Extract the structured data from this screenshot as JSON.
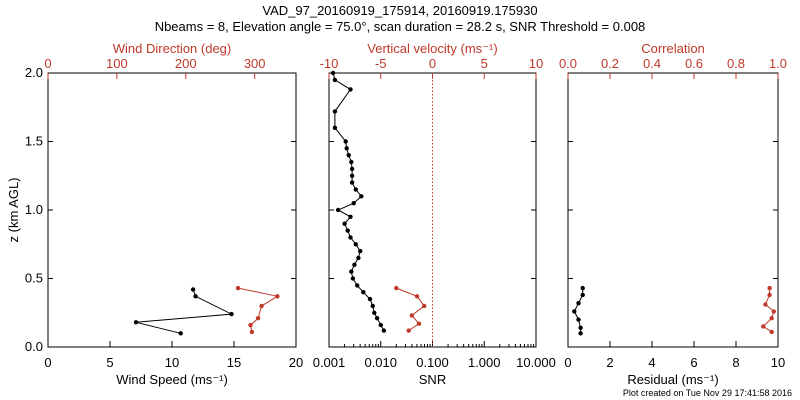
{
  "title_line1": "VAD_97_20160919_175914, 20160919.175930",
  "title_line2": "Nbeams = 8, Elevation angle = 75.0°, scan duration = 28.2 s, SNR Threshold = 0.008",
  "footer": "Plot created on Tue Nov 29 17:41:58 2016",
  "colors": {
    "black_series": "#000000",
    "red_series": "#c0392b"
  },
  "chart_data": [
    {
      "type": "line",
      "panel": "wind",
      "ylabel": "z (km AGL)",
      "ylim": [
        0,
        2.0
      ],
      "yticks": [
        0.0,
        0.5,
        1.0,
        1.5,
        2.0
      ],
      "xlabel_bottom": "Wind Speed (ms⁻¹)",
      "xlim_bottom": [
        0,
        20
      ],
      "xticks_bottom": [
        0,
        5,
        10,
        15,
        20
      ],
      "xlabel_top": "Wind Direction (deg)",
      "xlim_top": [
        0,
        360
      ],
      "xticks_top": [
        0,
        100,
        200,
        300
      ],
      "series": [
        {
          "axis": "bottom",
          "color": "#000000",
          "x": [
            10.7,
            7.1,
            14.8,
            11.9,
            11.7
          ],
          "y": [
            0.1,
            0.18,
            0.24,
            0.37,
            0.42
          ]
        },
        {
          "axis": "top",
          "color": "#c0392b",
          "x": [
            296,
            294,
            305,
            310,
            333,
            276
          ],
          "y": [
            0.11,
            0.16,
            0.21,
            0.3,
            0.37,
            0.43
          ]
        }
      ]
    },
    {
      "type": "line",
      "panel": "snr",
      "xlabel_bottom": "SNR",
      "xscale_bottom": "log",
      "xlim_bottom": [
        0.001,
        10.0
      ],
      "xticks_bottom": [
        "0.001",
        "0.010",
        "0.100",
        "1.000",
        "10.000"
      ],
      "xlabel_top": "Vertical velocity (ms⁻¹)",
      "xlim_top": [
        -10,
        10
      ],
      "xticks_top": [
        -10,
        -5,
        0,
        5,
        10
      ],
      "zero_line": 0,
      "series": [
        {
          "axis": "bottom",
          "color": "#000000",
          "x": [
            0.0115,
            0.01,
            0.0085,
            0.0075,
            0.007,
            0.0062,
            0.0046,
            0.0035,
            0.0029,
            0.0027,
            0.0031,
            0.0037,
            0.004,
            0.0033,
            0.0026,
            0.0023,
            0.002,
            0.0026,
            0.0015,
            0.003,
            0.0042,
            0.0033,
            0.0028,
            0.0028,
            0.0028,
            0.0027,
            0.0024,
            0.0022,
            0.0021,
            0.0013,
            0.0013,
            0.0026,
            0.0013,
            0.0012
          ],
          "y": [
            0.12,
            0.16,
            0.21,
            0.25,
            0.3,
            0.35,
            0.4,
            0.45,
            0.5,
            0.55,
            0.6,
            0.65,
            0.7,
            0.75,
            0.8,
            0.85,
            0.9,
            0.95,
            1.0,
            1.05,
            1.1,
            1.15,
            1.2,
            1.25,
            1.3,
            1.35,
            1.4,
            1.45,
            1.5,
            1.6,
            1.72,
            1.88,
            1.95,
            2.0
          ]
        },
        {
          "axis": "top",
          "color": "#c0392b",
          "x": [
            -2.3,
            -1.3,
            -2.0,
            -0.8,
            -1.5,
            -3.5
          ],
          "y": [
            0.12,
            0.17,
            0.23,
            0.3,
            0.37,
            0.43
          ]
        }
      ]
    },
    {
      "type": "line",
      "panel": "residual",
      "xlabel_bottom": "Residual (ms⁻¹)",
      "xlim_bottom": [
        0,
        10
      ],
      "xticks_bottom": [
        0,
        2,
        4,
        6,
        8,
        10
      ],
      "xlabel_top": "Correlation",
      "xlim_top": [
        0,
        1
      ],
      "xticks_top": [
        "0.0",
        "0.2",
        "0.4",
        "0.6",
        "0.8",
        "1.0"
      ],
      "series": [
        {
          "axis": "bottom",
          "color": "#000000",
          "x": [
            0.6,
            0.6,
            0.5,
            0.3,
            0.5,
            0.7,
            0.7
          ],
          "y": [
            0.1,
            0.14,
            0.2,
            0.26,
            0.32,
            0.38,
            0.43
          ]
        },
        {
          "axis": "top",
          "color": "#c0392b",
          "x": [
            0.97,
            0.93,
            0.97,
            0.98,
            0.94,
            0.96,
            0.96
          ],
          "y": [
            0.11,
            0.15,
            0.21,
            0.26,
            0.31,
            0.38,
            0.43
          ]
        }
      ]
    }
  ]
}
